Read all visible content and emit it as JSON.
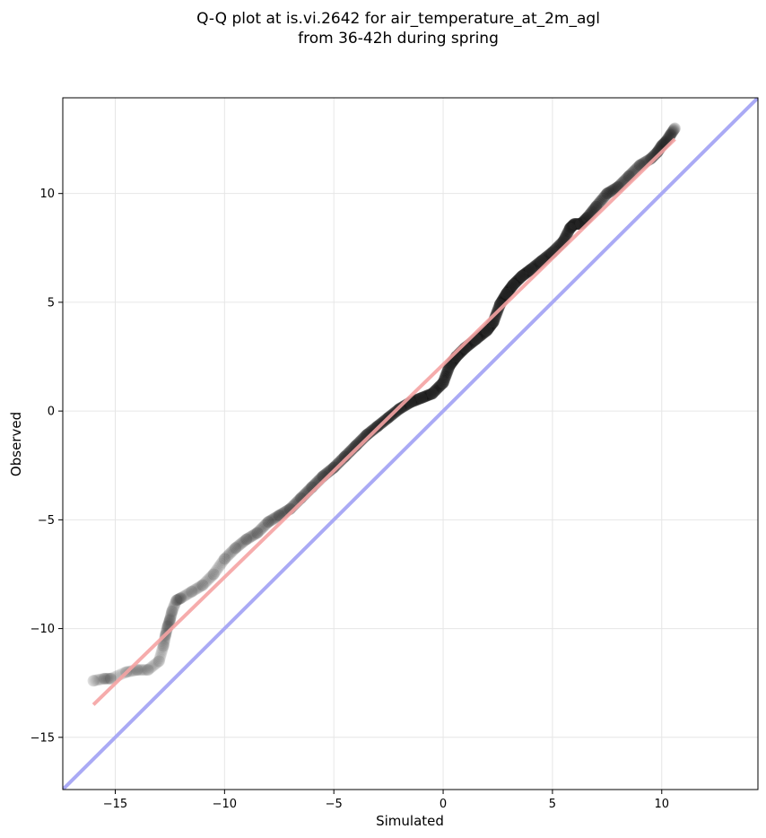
{
  "chart_data": {
    "type": "scatter",
    "title": "Q-Q plot at is.vi.2642 for air_temperature_at_2m_agl",
    "subtitle": "from 36-42h during spring",
    "xlabel": "Simulated",
    "ylabel": "Observed",
    "xlim": [
      -17.4,
      14.4
    ],
    "ylim": [
      -17.4,
      14.4
    ],
    "grid": true,
    "x_ticks": [
      -15,
      -10,
      -5,
      0,
      5,
      10
    ],
    "y_ticks": [
      -15,
      -10,
      -5,
      0,
      5,
      10
    ],
    "x_tick_labels": [
      "−15",
      "−10",
      "−5",
      "0",
      "5",
      "10"
    ],
    "y_tick_labels": [
      "−15",
      "−10",
      "−5",
      "0",
      "5",
      "10"
    ],
    "quantile_points": {
      "x": [
        -16.0,
        -15.5,
        -15.2,
        -14.5,
        -14.0,
        -13.5,
        -13.0,
        -12.8,
        -12.7,
        -12.6,
        -12.5,
        -12.4,
        -12.2,
        -12.0,
        -11.5,
        -11.0,
        -10.5,
        -10.0,
        -9.5,
        -9.0,
        -8.5,
        -8.0,
        -7.5,
        -7.0,
        -6.5,
        -6.0,
        -5.5,
        -5.0,
        -4.5,
        -4.0,
        -3.5,
        -3.0,
        -2.5,
        -2.0,
        -1.5,
        -1.0,
        -0.5,
        0.0,
        0.3,
        0.6,
        1.0,
        1.5,
        2.0,
        2.3,
        2.6,
        2.9,
        3.2,
        3.6,
        4.0,
        4.5,
        5.0,
        5.5,
        5.8,
        6.0,
        6.3,
        6.6,
        7.0,
        7.5,
        8.0,
        8.5,
        9.0,
        9.5,
        9.8,
        10.0,
        10.2,
        10.4,
        10.6
      ],
      "y": [
        -12.4,
        -12.3,
        -12.3,
        -12.0,
        -11.9,
        -11.9,
        -11.5,
        -10.8,
        -10.3,
        -9.9,
        -9.6,
        -9.2,
        -8.7,
        -8.6,
        -8.3,
        -8.0,
        -7.5,
        -6.8,
        -6.3,
        -5.9,
        -5.6,
        -5.1,
        -4.8,
        -4.5,
        -4.0,
        -3.5,
        -3.0,
        -2.6,
        -2.1,
        -1.6,
        -1.1,
        -0.7,
        -0.3,
        0.1,
        0.4,
        0.6,
        0.8,
        1.3,
        2.1,
        2.5,
        2.9,
        3.3,
        3.7,
        4.1,
        4.9,
        5.4,
        5.8,
        6.2,
        6.5,
        6.9,
        7.3,
        7.8,
        8.4,
        8.6,
        8.6,
        8.9,
        9.4,
        10.0,
        10.3,
        10.8,
        11.3,
        11.6,
        11.9,
        12.2,
        12.4,
        12.7,
        13.0
      ]
    },
    "reference_line": {
      "name": "y = x",
      "color": "#aaaaf5",
      "x": [
        -17.4,
        14.4
      ],
      "y": [
        -17.4,
        14.4
      ]
    },
    "fit_line": {
      "color": "#f5a3a3",
      "x": [
        -16.0,
        10.6
      ],
      "y": [
        -13.5,
        12.5
      ]
    },
    "colors": {
      "points": "#333333",
      "dense_points": "#111111",
      "axes": "#000000",
      "grid": "#e6e6e6"
    }
  }
}
